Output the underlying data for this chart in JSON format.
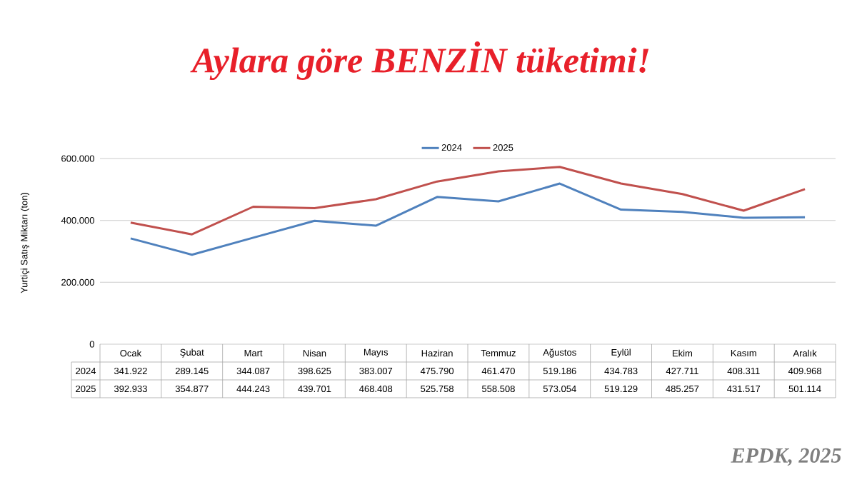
{
  "chart_data": {
    "type": "line",
    "title": "Aylara göre BENZİN tüketimi!",
    "ylabel": "Yurtiçi Satış Miktarı (ton)",
    "annotations": [
      "EPDK, 2025"
    ],
    "categories": [
      "Ocak",
      "Şubat",
      "Mart",
      "Nisan",
      "Mayıs",
      "Haziran",
      "Temmuz",
      "Ağustos",
      "Eylül",
      "Ekim",
      "Kasım",
      "Aralık"
    ],
    "series": [
      {
        "name": "2024",
        "color": "#4f81bd",
        "values": [
          341922,
          289145,
          344087,
          398625,
          383007,
          475790,
          461470,
          519186,
          434783,
          427711,
          408311,
          409968
        ],
        "value_labels": [
          "341.922",
          "289.145",
          "344.087",
          "398.625",
          "383.007",
          "475.790",
          "461.470",
          "519.186",
          "434.783",
          "427.711",
          "408.311",
          "409.968"
        ]
      },
      {
        "name": "2025",
        "color": "#c0504d",
        "values": [
          392933,
          354877,
          444243,
          439701,
          468408,
          525758,
          558508,
          573054,
          519129,
          485257,
          431517,
          501114
        ],
        "value_labels": [
          "392.933",
          "354.877",
          "444.243",
          "439.701",
          "468.408",
          "525.758",
          "558.508",
          "573.054",
          "519.129",
          "485.257",
          "431.517",
          "501.114"
        ]
      }
    ],
    "ylim": [
      0,
      600000
    ],
    "yticks": [
      0,
      {
        "value": 200000,
        "label": "200.000"
      },
      {
        "value": 400000,
        "label": "400.000"
      },
      {
        "value": 600000,
        "label": "600.000"
      }
    ],
    "grid": "y",
    "legend": "top",
    "marker": "none",
    "line_style": "solid"
  }
}
